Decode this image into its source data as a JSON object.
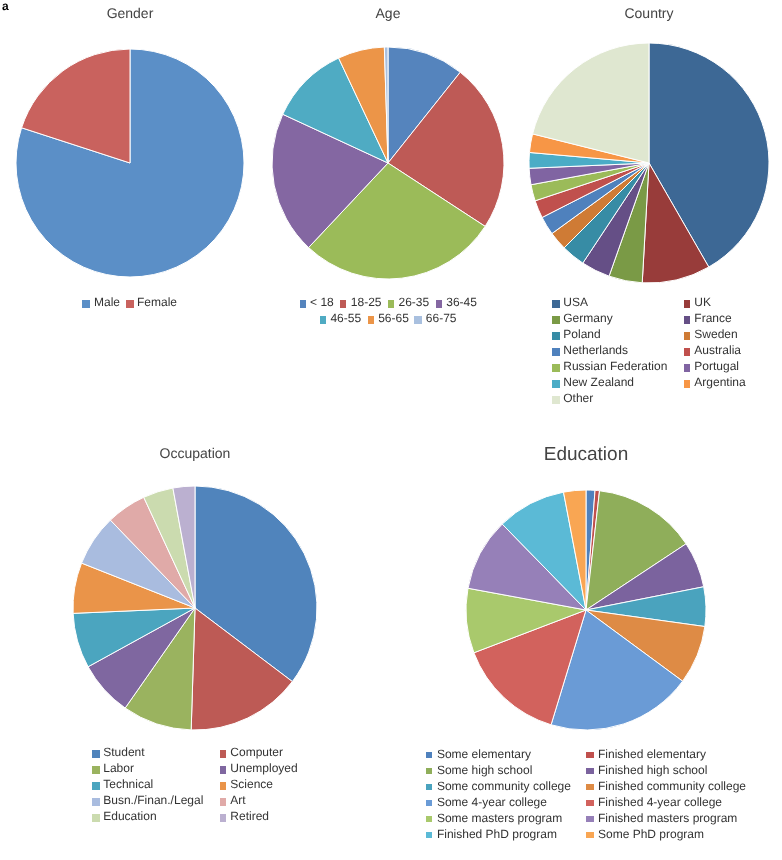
{
  "chart_data": [
    {
      "type": "pie",
      "title": "Gender",
      "annotations": [
        "a"
      ],
      "legend": "bottom",
      "categories": [
        "Male",
        "Female"
      ],
      "values": [
        80,
        20
      ],
      "colors": [
        "#5b8fc7",
        "#c9625e"
      ]
    },
    {
      "type": "pie",
      "title": "Age",
      "legend": "bottom",
      "categories": [
        "< 18",
        "18-25",
        "26-35",
        "36-45",
        "46-55",
        "56-65",
        "66-75"
      ],
      "values": [
        10.7,
        23.5,
        27.8,
        19.9,
        11.1,
        6.5,
        0.5
      ],
      "colors": [
        "#5584bd",
        "#be5a56",
        "#9bbb59",
        "#8467a2",
        "#4fabc3",
        "#ec9548",
        "#a9c0df"
      ]
    },
    {
      "type": "pie",
      "title": "Country",
      "legend": "bottom",
      "categories": [
        "USA",
        "UK",
        "Germany",
        "France",
        "Poland",
        "Sweden",
        "Netherlands",
        "Australia",
        "Russian Federation",
        "Portugal",
        "New Zealand",
        "Argentina",
        "Other"
      ],
      "values": [
        41.7,
        9.2,
        4.5,
        3.9,
        3.2,
        2.5,
        2.5,
        2.4,
        2.2,
        2.2,
        2.1,
        2.5,
        21.1
      ],
      "colors": [
        "#3d6895",
        "#983c3a",
        "#7a9a46",
        "#654f86",
        "#378ca5",
        "#cf7b35",
        "#4f81bd",
        "#c0504d",
        "#9bbb59",
        "#8064a2",
        "#4bacc6",
        "#f79646",
        "#dfe7d0"
      ]
    },
    {
      "type": "pie",
      "title": "Occupation",
      "legend": "bottom",
      "categories": [
        "Student",
        "Computer",
        "Labor",
        "Unemployed",
        "Technical",
        "Science",
        "Busn./Finan./Legal",
        "Art",
        "Education",
        "Retired"
      ],
      "values": [
        35.3,
        15.2,
        9.2,
        7.3,
        7.3,
        6.7,
        6.8,
        5.3,
        4.0,
        2.9
      ],
      "colors": [
        "#5084bc",
        "#bd5a55",
        "#9ab35f",
        "#7f67a0",
        "#4ba5bf",
        "#ea9449",
        "#a9bcdf",
        "#e0aaa8",
        "#cbdbaf",
        "#bbb0d0"
      ]
    },
    {
      "type": "pie",
      "title": "Education",
      "legend": "bottom",
      "categories": [
        "Some elementary",
        "Finished elementary",
        "Some high school",
        "Finished high school",
        "Some community college",
        "Finished community college",
        "Some 4-year college",
        "Finished 4-year college",
        "Some masters program",
        "Finished masters program",
        "Finished PhD program",
        "Some PhD program"
      ],
      "values": [
        1.2,
        0.6,
        13.9,
        6.2,
        5.3,
        7.9,
        19.6,
        14.5,
        8.7,
        9.8,
        9.3,
        3.0
      ],
      "colors": [
        "#4f81bd",
        "#c0504d",
        "#8fae5a",
        "#7b639e",
        "#4aa3be",
        "#de8b45",
        "#6a9bd6",
        "#d2625d",
        "#a9c96c",
        "#9680b8",
        "#5bbad6",
        "#f9a653"
      ]
    }
  ]
}
